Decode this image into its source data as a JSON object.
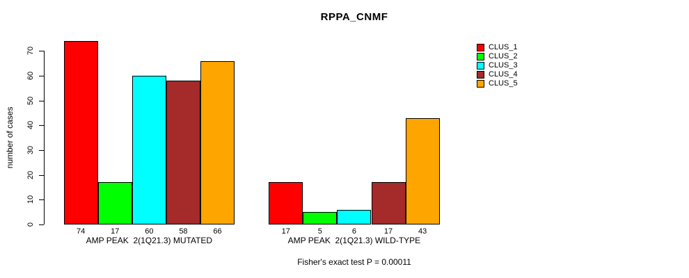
{
  "title": "RPPA_CNMF",
  "footer": "Fisher's exact test P = 0.00011",
  "chart_data": {
    "type": "bar",
    "title": "RPPA_CNMF",
    "xlabel": "",
    "ylabel": "number of cases",
    "ylim": [
      0,
      70
    ],
    "yticks": [
      0,
      10,
      20,
      30,
      40,
      50,
      60,
      70
    ],
    "grid": false,
    "legend_position": "topright",
    "categories": [
      "AMP PEAK  2(1Q21.3) MUTATED",
      "AMP PEAK  2(1Q21.3) WILD-TYPE"
    ],
    "series": [
      {
        "name": "CLUS_1",
        "color": "#ff0000",
        "values": [
          74,
          17
        ]
      },
      {
        "name": "CLUS_2",
        "color": "#00ff00",
        "values": [
          17,
          5
        ]
      },
      {
        "name": "CLUS_3",
        "color": "#00ffff",
        "values": [
          60,
          6
        ]
      },
      {
        "name": "CLUS_4",
        "color": "#a52a2a",
        "values": [
          58,
          17
        ]
      },
      {
        "name": "CLUS_5",
        "color": "#ffa500",
        "values": [
          66,
          43
        ]
      }
    ],
    "bar_value_labels": [
      [
        "74",
        "17",
        "60",
        "58",
        "66"
      ],
      [
        "17",
        "5",
        "6",
        "17",
        "43"
      ]
    ],
    "annotation": "Fisher's exact test P = 0.00011"
  }
}
